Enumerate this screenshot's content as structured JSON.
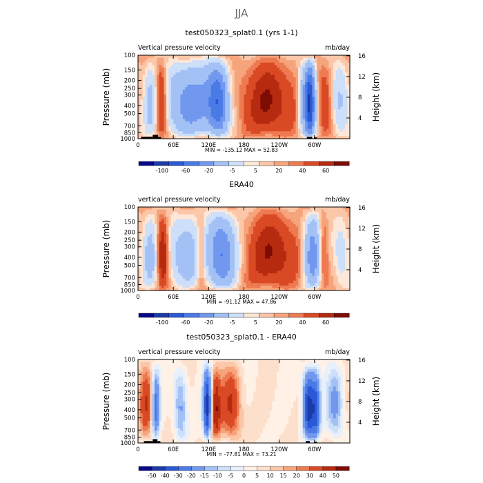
{
  "figure_title": "JJA",
  "colors": {
    "wide_scale": [
      "#08088a",
      "#1c3aa8",
      "#2a58d6",
      "#4a7ae6",
      "#7198ee",
      "#a3c1f5",
      "#cddff9",
      "#fde7d8",
      "#fbc7a8",
      "#f6a47c",
      "#ee7a52",
      "#d94a24",
      "#b62a10",
      "#7d0c05"
    ],
    "diff_scale": [
      "#08088a",
      "#1c3aa8",
      "#2a58d6",
      "#4a7ae6",
      "#7198ee",
      "#a3c1f5",
      "#cddff9",
      "#e8f0fc",
      "#fff1e6",
      "#fde0cc",
      "#fbc7a8",
      "#f6a47c",
      "#ee7a52",
      "#d94a24",
      "#b62a10",
      "#7d0c05"
    ],
    "mask": "#000000"
  },
  "chart_data": [
    {
      "type": "heatmap",
      "title": "test050323_splat0.1 (yrs 1-1)",
      "left_label": "Vertical pressure velocity",
      "units": "mb/day",
      "ylabel": "Pressure (mb)",
      "y2label": "Height (km)",
      "stats": "MIN = -135.12   MAX =  52.83",
      "x_ticks": [
        "0",
        "60E",
        "120E",
        "180",
        "120W",
        "60W"
      ],
      "x_tick_lons": [
        0,
        60,
        120,
        180,
        240,
        300
      ],
      "xlim": [
        0,
        360
      ],
      "p_ticks": [
        "100",
        "150",
        "200",
        "250",
        "300",
        "400",
        "500",
        "700",
        "850",
        "1000"
      ],
      "p_values": [
        100,
        150,
        200,
        250,
        300,
        400,
        500,
        700,
        850,
        1000
      ],
      "z_ticks": [
        "4",
        "8",
        "12",
        "16"
      ],
      "z_values": [
        4,
        8,
        12,
        16
      ],
      "colorbar_labels": [
        "-100",
        "-60",
        "-20",
        "-5",
        "5",
        "20",
        "40",
        "60"
      ],
      "levels": [
        -120,
        -100,
        -80,
        -60,
        -40,
        -20,
        -10,
        -5,
        0,
        5,
        10,
        20,
        30,
        40,
        60
      ],
      "min": -135.12,
      "max": 52.83,
      "structure": [
        {
          "lon": 20,
          "w": 8,
          "amp": -30
        },
        {
          "lon": 40,
          "w": 7,
          "amp": 45
        },
        {
          "lon": 88,
          "w": 28,
          "amp": -65
        },
        {
          "lon": 136,
          "w": 12,
          "amp": -90
        },
        {
          "lon": 222,
          "w": 32,
          "amp": 38
        },
        {
          "lon": 292,
          "w": 6,
          "amp": -135
        },
        {
          "lon": 280,
          "w": 6,
          "amp": -40
        },
        {
          "lon": 318,
          "w": 8,
          "amp": 25
        },
        {
          "lon": 344,
          "w": 10,
          "amp": -30
        }
      ],
      "topography": [
        [
          5,
          25,
          950
        ],
        [
          25,
          34,
          900
        ],
        [
          34,
          39,
          950
        ],
        [
          287,
          296,
          950
        ],
        [
          299,
          304,
          965
        ]
      ]
    },
    {
      "type": "heatmap",
      "title": "ERA40",
      "left_label": "vertical pressure velocity",
      "units": "mb/day",
      "ylabel": "Pressure (mb)",
      "y2label": "Height (km)",
      "stats": "MIN = -91.12   MAX =  47.86",
      "x_ticks": [
        "0",
        "60E",
        "120E",
        "180",
        "120W",
        "60W"
      ],
      "x_tick_lons": [
        0,
        60,
        120,
        180,
        240,
        300
      ],
      "xlim": [
        0,
        360
      ],
      "p_ticks": [
        "100",
        "150",
        "200",
        "250",
        "300",
        "400",
        "500",
        "700",
        "850",
        "1000"
      ],
      "p_values": [
        100,
        150,
        200,
        250,
        300,
        400,
        500,
        700,
        850,
        1000
      ],
      "z_ticks": [
        "4",
        "8",
        "12",
        "16"
      ],
      "z_values": [
        4,
        8,
        12,
        16
      ],
      "colorbar_labels": [
        "-100",
        "-60",
        "-20",
        "-5",
        "5",
        "20",
        "40",
        "60"
      ],
      "levels": [
        -120,
        -100,
        -80,
        -60,
        -40,
        -20,
        -10,
        -5,
        0,
        5,
        10,
        20,
        30,
        40,
        60
      ],
      "min": -91.12,
      "max": 47.86,
      "structure": [
        {
          "lon": 20,
          "w": 9,
          "amp": -35
        },
        {
          "lon": 42,
          "w": 7,
          "amp": 48
        },
        {
          "lon": 80,
          "w": 20,
          "amp": -40
        },
        {
          "lon": 107,
          "w": 6,
          "amp": 25
        },
        {
          "lon": 142,
          "w": 16,
          "amp": -80
        },
        {
          "lon": 228,
          "w": 30,
          "amp": 38
        },
        {
          "lon": 296,
          "w": 10,
          "amp": -70
        },
        {
          "lon": 315,
          "w": 6,
          "amp": 25
        },
        {
          "lon": 346,
          "w": 10,
          "amp": -20
        }
      ],
      "topography": []
    },
    {
      "type": "heatmap",
      "title": "test050323_splat0.1 - ERA40",
      "left_label": "vertical pressure velocity",
      "units": "mb/day",
      "ylabel": "Pressure (mb)",
      "y2label": "Height (km)",
      "stats": "MIN = -77.81   MAX =  73.21",
      "x_ticks": [
        "0",
        "60E",
        "120E",
        "180",
        "120W",
        "60W"
      ],
      "x_tick_lons": [
        0,
        60,
        120,
        180,
        240,
        300
      ],
      "xlim": [
        0,
        360
      ],
      "p_ticks": [
        "100",
        "150",
        "200",
        "250",
        "300",
        "400",
        "500",
        "700",
        "850",
        "1000"
      ],
      "p_values": [
        100,
        150,
        200,
        250,
        300,
        400,
        500,
        700,
        850,
        1000
      ],
      "z_ticks": [
        "4",
        "8",
        "12",
        "16"
      ],
      "z_values": [
        4,
        8,
        12,
        16
      ],
      "colorbar_labels": [
        "-50",
        "-40",
        "-30",
        "-20",
        "-15",
        "-10",
        "-5",
        "0",
        "5",
        "10",
        "15",
        "20",
        "30",
        "40",
        "50"
      ],
      "levels": [
        -60,
        -50,
        -40,
        -30,
        -20,
        -15,
        -10,
        -5,
        0,
        5,
        10,
        15,
        20,
        30,
        40,
        50
      ],
      "min": -77.81,
      "max": 73.21,
      "structure": [
        {
          "lon": 14,
          "w": 8,
          "amp": 38
        },
        {
          "lon": 30,
          "w": 5,
          "amp": -45
        },
        {
          "lon": 72,
          "w": 8,
          "amp": -30
        },
        {
          "lon": 118,
          "w": 5,
          "amp": -70
        },
        {
          "lon": 132,
          "w": 6,
          "amp": 45
        },
        {
          "lon": 158,
          "w": 12,
          "amp": 40
        },
        {
          "lon": 290,
          "w": 7,
          "amp": -70
        },
        {
          "lon": 303,
          "w": 5,
          "amp": -45
        },
        {
          "lon": 335,
          "w": 10,
          "amp": -30
        }
      ],
      "topography": [
        [
          10,
          25,
          950
        ],
        [
          25,
          33,
          900
        ],
        [
          33,
          38,
          950
        ],
        [
          285,
          292,
          950
        ],
        [
          299,
          304,
          965
        ]
      ]
    }
  ]
}
